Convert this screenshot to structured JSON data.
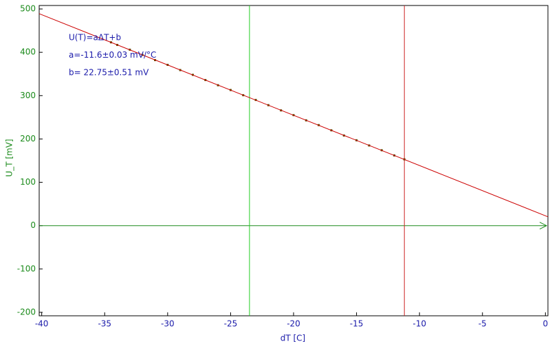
{
  "chart_data": {
    "type": "scatter",
    "x_label": "dT [C]",
    "y_label": "U_T [mV]",
    "annotations": [
      "U(T)=aΔT+b",
      "a=-11.6±0.03 mV/°C",
      "b= 22.75±0.51 mV"
    ],
    "xlim": [
      -40.2,
      0.2
    ],
    "ylim": [
      -208,
      508
    ],
    "xticks": [
      -40,
      -35,
      -30,
      -25,
      -20,
      -15,
      -10,
      -5,
      0
    ],
    "yticks": [
      -200,
      -100,
      0,
      100,
      200,
      300,
      400,
      500
    ],
    "x_color": "#1a1aaa",
    "y_color": "#1a8a1a",
    "zero_line_color": "#1a8a1a",
    "series": [
      {
        "color": "#5a5200",
        "x": [
          -34.5,
          -34,
          -33,
          -32,
          -31,
          -30,
          -29,
          -28,
          -27,
          -26,
          -25,
          -24,
          -23,
          -22,
          -21,
          -20,
          -19,
          -18,
          -17,
          -16,
          -15,
          -14,
          -13,
          -12,
          -11.2
        ],
        "values": [
          423,
          417,
          406,
          394,
          382,
          371,
          359,
          348,
          336,
          324,
          313,
          301,
          290,
          278,
          266,
          255,
          243,
          232,
          220,
          208,
          197,
          185,
          174,
          162,
          153
        ]
      },
      {
        "color": "#cc0000",
        "line": true,
        "x": [
          -40.2,
          0.2
        ],
        "values": [
          489.1,
          20.4
        ]
      }
    ],
    "cursors": [
      {
        "x": -23.5,
        "color": "#22cc22"
      },
      {
        "x": -11.2,
        "color": "#cc2222"
      }
    ]
  }
}
